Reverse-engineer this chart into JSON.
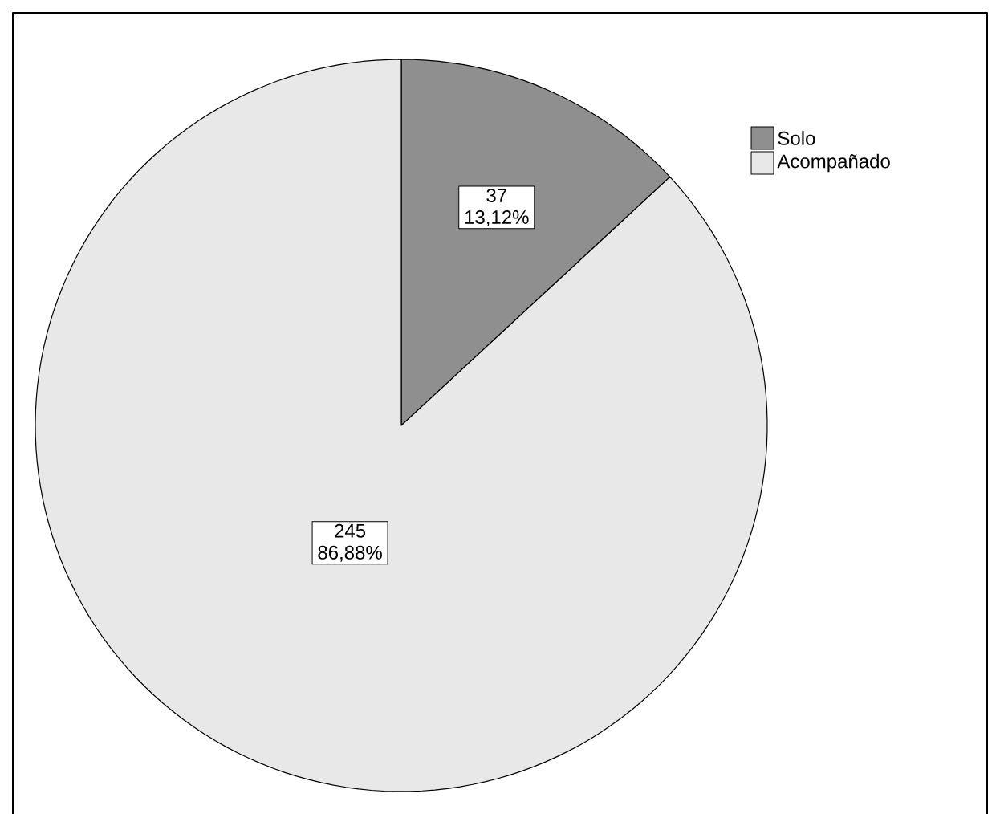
{
  "chart_data": {
    "type": "pie",
    "categories": [
      "Solo",
      "Acompañado"
    ],
    "values": [
      37,
      245
    ],
    "colors": [
      "#8f8f8f",
      "#e8e8e8"
    ],
    "value_labels": [
      "37 13,12%",
      "245 86,88%"
    ],
    "legend": "top right"
  }
}
